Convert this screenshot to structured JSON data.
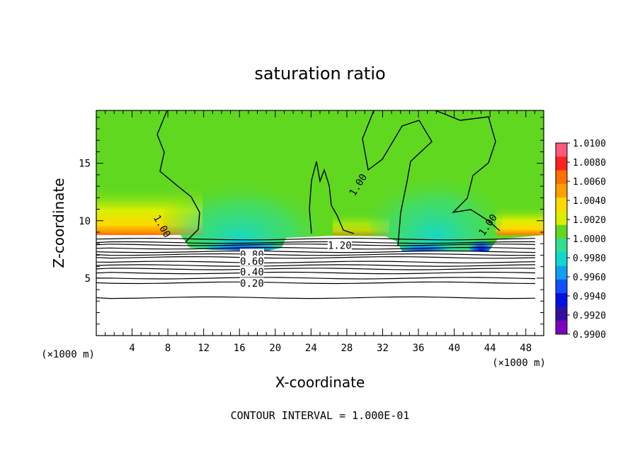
{
  "chart_data": {
    "type": "heatmap",
    "title": "saturation ratio",
    "xlabel": "X-coordinate",
    "ylabel": "Z-coordinate",
    "x_scale_label": "(×1000 m)",
    "x_scale_label_right": "(×1000 m)",
    "footer": "CONTOUR INTERVAL = 1.000E-01",
    "xlim": [
      0,
      50
    ],
    "ylim": [
      0,
      19.6
    ],
    "x_ticks": [
      4,
      8,
      12,
      16,
      20,
      24,
      28,
      32,
      36,
      40,
      44,
      48
    ],
    "x_minor_step": 1,
    "y_ticks": [
      5,
      10,
      15
    ],
    "y_minor_step": 1,
    "colorbar": {
      "min": 0.99,
      "max": 1.01,
      "labels": [
        "1.0100",
        "1.0080",
        "1.0060",
        "1.0040",
        "1.0020",
        "1.0000",
        "0.9980",
        "0.9960",
        "0.9940",
        "0.9920",
        "0.9900"
      ],
      "colors": [
        "#ff5a7a",
        "#ff2020",
        "#ff7000",
        "#ffa000",
        "#ffd800",
        "#d8f000",
        "#60d820",
        "#30e090",
        "#10d8d0",
        "#10a0f0",
        "#1050ff",
        "#0010e0",
        "#3010a0",
        "#8000c0"
      ]
    },
    "contour_labels": [
      {
        "text": "1.00",
        "x": 29.3,
        "y": 13.1,
        "angle": -58
      },
      {
        "text": "1.00",
        "x": 43.8,
        "y": 9.6,
        "angle": -55
      },
      {
        "text": "1.00",
        "x": 7.3,
        "y": 9.5,
        "angle": 60
      },
      {
        "text": "1.20",
        "x": 27.2,
        "y": 7.8,
        "angle": 0
      },
      {
        "text": "0.80",
        "x": 17.4,
        "y": 7.0,
        "angle": 0
      },
      {
        "text": "0.60",
        "x": 17.4,
        "y": 6.4,
        "angle": 0
      },
      {
        "text": "0.40",
        "x": 17.4,
        "y": 5.5,
        "angle": 0
      },
      {
        "text": "0.20",
        "x": 17.4,
        "y": 4.5,
        "angle": 0
      }
    ],
    "contour_levels_below_cloud_base_km": [
      8.4,
      8.1,
      7.9,
      7.6,
      7.3,
      7.05,
      6.8,
      6.4,
      6.1,
      5.8,
      5.45,
      5.0,
      4.6,
      3.3
    ],
    "cloud_base_km": 8.8
  }
}
